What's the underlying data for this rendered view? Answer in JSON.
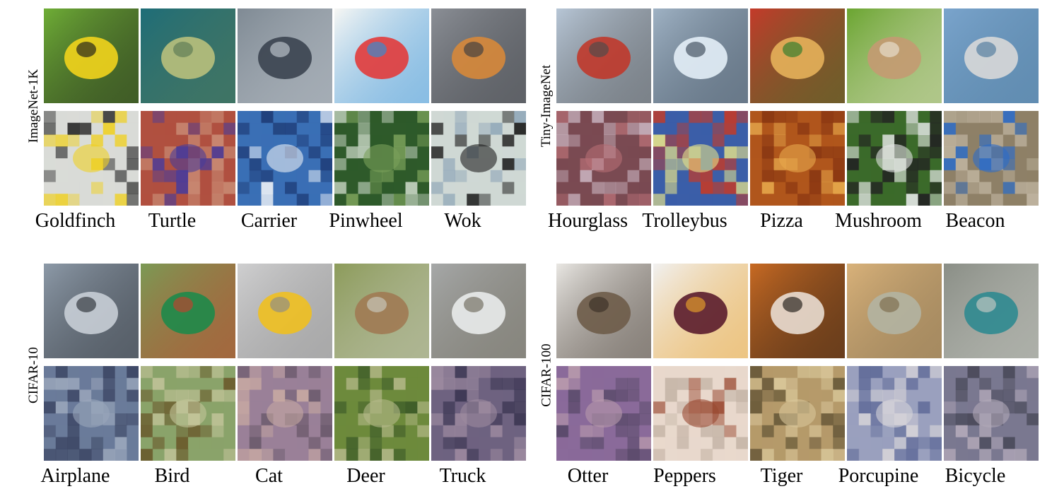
{
  "panels": [
    {
      "dataset": "ImageNet-1K",
      "classes": [
        "Goldfinch",
        "Turtle",
        "Carrier",
        "Pinwheel",
        "Wok"
      ],
      "reference_palettes": [
        [
          "#6fae36",
          "#f2d41c",
          "#1a1a1a"
        ],
        [
          "#1e6d78",
          "#b9c07c",
          "#5a7a55"
        ],
        [
          "#7f8a94",
          "#3b4450",
          "#c2c8cf"
        ],
        [
          "#f7f7f4",
          "#e23b3b",
          "#2f8ed6"
        ],
        [
          "#8b8f96",
          "#d7883a",
          "#3a3c40"
        ]
      ],
      "inverted_palettes": [
        [
          "#d9dbd7",
          "#efd127",
          "#2f2f2f"
        ],
        [
          "#b05040",
          "#4a3c9a",
          "#c98a73"
        ],
        [
          "#3a6fb5",
          "#e9eef5",
          "#1f3d78"
        ],
        [
          "#2e5a2a",
          "#7aa05a",
          "#c4d3c0"
        ],
        [
          "#cfd8d4",
          "#1f1f1f",
          "#8fa6b8"
        ]
      ]
    },
    {
      "dataset": "Tiny-ImageNet",
      "classes": [
        "Hourglass",
        "Trolleybus",
        "Pizza",
        "Mushroom",
        "Beacon"
      ],
      "reference_palettes": [
        [
          "#b7c6d6",
          "#c0392b",
          "#4b4b4b"
        ],
        [
          "#9fb2c4",
          "#e3eef7",
          "#3c4a59"
        ],
        [
          "#c43a2a",
          "#e6b15a",
          "#2b7a2b"
        ],
        [
          "#6aa530",
          "#c49a72",
          "#e9e2d3"
        ],
        [
          "#7aa4cc",
          "#d8d8d8",
          "#4d7a9c"
        ]
      ],
      "inverted_palettes": [
        [
          "#7a4a52",
          "#b56e74",
          "#c9b3bf"
        ],
        [
          "#3b5ea8",
          "#e5e28a",
          "#c13b2a"
        ],
        [
          "#b0561c",
          "#e7a94c",
          "#8a3712"
        ],
        [
          "#3b6a2a",
          "#e2e5e3",
          "#222222"
        ],
        [
          "#8e8067",
          "#2d6cc8",
          "#c0b4a0"
        ]
      ]
    },
    {
      "dataset": "CIFAR-10",
      "classes": [
        "Airplane",
        "Bird",
        "Cat",
        "Deer",
        "Truck"
      ],
      "reference_palettes": [
        [
          "#8d9aa8",
          "#c8ced6",
          "#2b2f35"
        ],
        [
          "#7b9a55",
          "#1e8a4a",
          "#c3402c"
        ],
        [
          "#cfcfd0",
          "#f0c020",
          "#8a8a8a"
        ],
        [
          "#8c9b5a",
          "#a07a53",
          "#c9cbc0"
        ],
        [
          "#a6a8a8",
          "#e9ebeb",
          "#6e6a5c"
        ]
      ],
      "inverted_palettes": [
        [
          "#6a7b9a",
          "#9aa6bb",
          "#3b4563"
        ],
        [
          "#8aa36a",
          "#c3c49a",
          "#6a5a2c"
        ],
        [
          "#9a8098",
          "#c7a8a2",
          "#6b5a6c"
        ],
        [
          "#6d8a3c",
          "#b5b98a",
          "#3c5a28"
        ],
        [
          "#6e6280",
          "#9c8a9f",
          "#3b3652"
        ]
      ]
    },
    {
      "dataset": "CIFAR-100",
      "classes": [
        "Otter",
        "Peppers",
        "Tiger",
        "Porcupine",
        "Bicycle"
      ],
      "reference_palettes": [
        [
          "#e9e7e3",
          "#6e5c49",
          "#3a2f26"
        ],
        [
          "#f1f1f1",
          "#5a1c2c",
          "#e9a12a"
        ],
        [
          "#c86a23",
          "#e9ddd2",
          "#1e1a16"
        ],
        [
          "#d9b27a",
          "#b2b4a2",
          "#7c6a4c"
        ],
        [
          "#8a8e86",
          "#2f8a90",
          "#c8cac4"
        ]
      ],
      "inverted_palettes": [
        [
          "#8a6a9a",
          "#b89aac",
          "#5a4a6a"
        ],
        [
          "#e8d8cc",
          "#9a4a32",
          "#c6b6a8"
        ],
        [
          "#b59a6a",
          "#d9c79a",
          "#6a5a3a"
        ],
        [
          "#9aa0be",
          "#d6d3d8",
          "#5f6a98"
        ],
        [
          "#7a7890",
          "#b1a8b8",
          "#4a4a5a"
        ]
      ]
    }
  ]
}
